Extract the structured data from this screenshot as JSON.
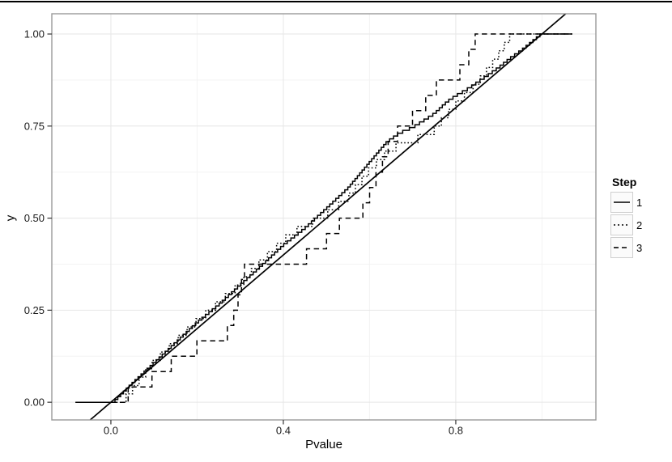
{
  "chart_data": {
    "type": "line",
    "subtype": "ecdf-step-functions",
    "title": "",
    "xlabel": "Pvalue",
    "ylabel": "y",
    "x_axis": {
      "ticks": [
        0.0,
        0.4,
        0.8
      ],
      "tick_labels": [
        "0.0",
        "0.4",
        "0.8"
      ],
      "minor_ticks": [
        0.2,
        0.6,
        1.0
      ],
      "domain": [
        -0.137,
        1.125
      ]
    },
    "y_axis": {
      "ticks": [
        0.0,
        0.25,
        0.5,
        0.75,
        1.0
      ],
      "tick_labels": [
        "0.00",
        "0.25",
        "0.50",
        "0.75",
        "1.00"
      ],
      "minor_ticks": [
        0.125,
        0.375,
        0.625,
        0.875
      ],
      "domain": [
        -0.048,
        1.055
      ]
    },
    "legend": {
      "title": "Step",
      "position": "right",
      "entries": [
        {
          "label": "1",
          "line_style": "solid"
        },
        {
          "label": "2",
          "line_style": "dotted"
        },
        {
          "label": "3",
          "line_style": "dashed"
        }
      ]
    },
    "grid": "major-and-minor",
    "reference_line": {
      "type": "identity",
      "equation": "y = x"
    },
    "pad": {
      "left_x": -0.082,
      "right_x": 1.07
    },
    "series": [
      {
        "name": "1",
        "line_style": "solid",
        "n": 130,
        "anchors": [
          [
            0.003,
            0
          ],
          [
            0.05,
            0.055
          ],
          [
            0.1,
            0.11
          ],
          [
            0.15,
            0.165
          ],
          [
            0.2,
            0.22
          ],
          [
            0.25,
            0.268
          ],
          [
            0.3,
            0.322
          ],
          [
            0.35,
            0.375
          ],
          [
            0.4,
            0.43
          ],
          [
            0.45,
            0.476
          ],
          [
            0.5,
            0.53
          ],
          [
            0.55,
            0.585
          ],
          [
            0.6,
            0.655
          ],
          [
            0.64,
            0.71
          ],
          [
            0.67,
            0.735
          ],
          [
            0.7,
            0.75
          ],
          [
            0.73,
            0.772
          ],
          [
            0.75,
            0.787
          ],
          [
            0.78,
            0.82
          ],
          [
            0.8,
            0.836
          ],
          [
            0.83,
            0.856
          ],
          [
            0.85,
            0.872
          ],
          [
            0.88,
            0.896
          ],
          [
            0.9,
            0.913
          ],
          [
            0.93,
            0.941
          ],
          [
            0.95,
            0.957
          ],
          [
            0.97,
            0.976
          ],
          [
            0.995,
            1.0
          ]
        ]
      },
      {
        "name": "2",
        "line_style": "dotted",
        "n": 44,
        "anchors": [
          [
            0.02,
            0
          ],
          [
            0.1,
            0.12
          ],
          [
            0.2,
            0.23
          ],
          [
            0.3,
            0.33
          ],
          [
            0.35,
            0.395
          ],
          [
            0.42,
            0.47
          ],
          [
            0.5,
            0.52
          ],
          [
            0.55,
            0.565
          ],
          [
            0.6,
            0.64
          ],
          [
            0.65,
            0.7
          ],
          [
            0.7,
            0.72
          ],
          [
            0.75,
            0.75
          ],
          [
            0.8,
            0.818
          ],
          [
            0.85,
            0.875
          ],
          [
            0.9,
            0.955
          ],
          [
            0.925,
            1.0
          ]
        ]
      },
      {
        "name": "3",
        "line_style": "dashed",
        "n": 24,
        "anchors": [
          [
            0.04,
            0.042
          ],
          [
            0.095,
            0.083
          ],
          [
            0.14,
            0.125
          ],
          [
            0.2,
            0.167
          ],
          [
            0.27,
            0.208
          ],
          [
            0.285,
            0.25
          ],
          [
            0.295,
            0.292
          ],
          [
            0.303,
            0.333
          ],
          [
            0.31,
            0.375
          ],
          [
            0.455,
            0.417
          ],
          [
            0.5,
            0.458
          ],
          [
            0.53,
            0.5
          ],
          [
            0.585,
            0.542
          ],
          [
            0.6,
            0.583
          ],
          [
            0.615,
            0.625
          ],
          [
            0.63,
            0.667
          ],
          [
            0.643,
            0.708
          ],
          [
            0.665,
            0.75
          ],
          [
            0.7,
            0.792
          ],
          [
            0.73,
            0.833
          ],
          [
            0.755,
            0.875
          ],
          [
            0.81,
            0.917
          ],
          [
            0.83,
            0.958
          ],
          [
            0.845,
            1.0
          ]
        ]
      }
    ],
    "colors": {
      "line": "#000000",
      "grid_major": "#e6e6e6",
      "grid_minor": "#f3f3f3",
      "panel_border": "#999999",
      "tick": "#333333",
      "text": "#1a1a1a",
      "background": "#ffffff"
    }
  }
}
